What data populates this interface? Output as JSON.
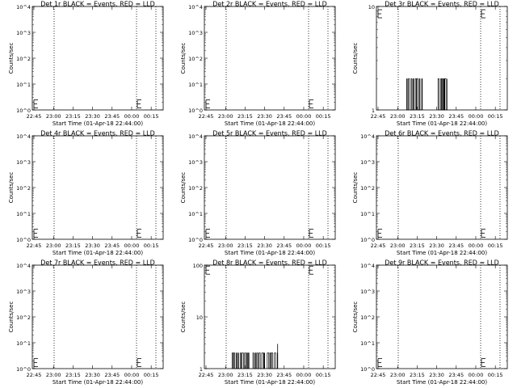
{
  "chart_data": [
    {
      "type": "line",
      "title": "Det 1r BLACK = Events, RED = LLD",
      "xlabel": "Start Time (01-Apr-18 22:44:00)",
      "ylabel": "Counts/sec",
      "yscale": "log",
      "ylim_exp": [
        0,
        4
      ],
      "ytick_labels": [
        "10^0",
        "10^1",
        "10^2",
        "10^3",
        "10^4"
      ],
      "xtick_labels": [
        "22:45",
        "23:00",
        "23:15",
        "23:30",
        "23:45",
        "00:00",
        "00:15"
      ],
      "x_range_minutes": [
        0,
        97
      ],
      "vlines_minutes": [
        16,
        91,
        126
      ],
      "e_markers": [
        {
          "x_min": 1,
          "y": 1.7
        },
        {
          "x_min": 122,
          "y": 1.7
        }
      ],
      "series": []
    },
    {
      "type": "line",
      "title": "Det 2r BLACK = Events, RED = LLD",
      "xlabel": "Start Time (01-Apr-18 22:44:00)",
      "ylabel": "Counts/sec",
      "yscale": "log",
      "ylim_exp": [
        0,
        4
      ],
      "ytick_labels": [
        "10^0",
        "10^1",
        "10^2",
        "10^3",
        "10^4"
      ],
      "xtick_labels": [
        "22:45",
        "23:00",
        "23:15",
        "23:30",
        "23:45",
        "00:00",
        "00:15"
      ],
      "x_range_minutes": [
        0,
        97
      ],
      "vlines_minutes": [
        16,
        91,
        126
      ],
      "e_markers": [
        {
          "x_min": 1,
          "y": 1.7
        },
        {
          "x_min": 122,
          "y": 1.7
        }
      ],
      "series": []
    },
    {
      "type": "line",
      "title": "Det 3r BLACK = Events, RED = LLD",
      "xlabel": "Start Time (01-Apr-18 22:44:00)",
      "ylabel": "Counts/sec",
      "yscale": "log",
      "ylim_exp": [
        0,
        1
      ],
      "ytick_labels": [
        "1",
        "10"
      ],
      "xtick_labels": [
        "22:45",
        "23:00",
        "23:15",
        "23:30",
        "23:45",
        "00:00",
        "00:15"
      ],
      "x_range_minutes": [
        0,
        97
      ],
      "vlines_minutes": [
        16,
        91,
        126
      ],
      "e_markers": [
        {
          "x_min": 1,
          "y": 8.5
        },
        {
          "x_min": 122,
          "y": 8.5
        }
      ],
      "series": [
        {
          "name": "Events",
          "segments": [
            [
              23,
              35
            ],
            [
              47,
              54
            ]
          ],
          "levels": [
            1,
            2
          ]
        }
      ]
    },
    {
      "type": "line",
      "title": "Det 4r BLACK = Events, RED = LLD",
      "xlabel": "Start Time (01-Apr-18 22:44:00)",
      "ylabel": "Counts/sec",
      "yscale": "log",
      "ylim_exp": [
        0,
        4
      ],
      "ytick_labels": [
        "10^0",
        "10^1",
        "10^2",
        "10^3",
        "10^4"
      ],
      "xtick_labels": [
        "22:45",
        "23:00",
        "23:15",
        "23:30",
        "23:45",
        "00:00",
        "00:15"
      ],
      "x_range_minutes": [
        0,
        97
      ],
      "vlines_minutes": [
        16,
        91,
        126
      ],
      "e_markers": [
        {
          "x_min": 1,
          "y": 1.7
        },
        {
          "x_min": 122,
          "y": 1.7
        }
      ],
      "series": []
    },
    {
      "type": "line",
      "title": "Det 5r BLACK = Events, RED = LLD",
      "xlabel": "Start Time (01-Apr-18 22:44:00)",
      "ylabel": "Counts/sec",
      "yscale": "log",
      "ylim_exp": [
        0,
        4
      ],
      "ytick_labels": [
        "10^0",
        "10^1",
        "10^2",
        "10^3",
        "10^4"
      ],
      "xtick_labels": [
        "22:45",
        "23:00",
        "23:15",
        "23:30",
        "23:45",
        "00:00",
        "00:15"
      ],
      "x_range_minutes": [
        0,
        97
      ],
      "vlines_minutes": [
        16,
        91,
        126
      ],
      "e_markers": [
        {
          "x_min": 1,
          "y": 1.7
        },
        {
          "x_min": 122,
          "y": 1.7
        }
      ],
      "series": []
    },
    {
      "type": "line",
      "title": "Det 6r BLACK = Events, RED = LLD",
      "xlabel": "Start Time (01-Apr-18 22:44:00)",
      "ylabel": "Counts/sec",
      "yscale": "log",
      "ylim_exp": [
        0,
        4
      ],
      "ytick_labels": [
        "10^0",
        "10^1",
        "10^2",
        "10^3",
        "10^4"
      ],
      "xtick_labels": [
        "22:45",
        "23:00",
        "23:15",
        "23:30",
        "23:45",
        "00:00",
        "00:15"
      ],
      "x_range_minutes": [
        0,
        97
      ],
      "vlines_minutes": [
        16,
        91,
        126
      ],
      "e_markers": [
        {
          "x_min": 1,
          "y": 1.7
        },
        {
          "x_min": 122,
          "y": 1.7
        }
      ],
      "series": []
    },
    {
      "type": "line",
      "title": "Det 7r BLACK = Events, RED = LLD",
      "xlabel": "Start Time (01-Apr-18 22:44:00)",
      "ylabel": "Counts/sec",
      "yscale": "log",
      "ylim_exp": [
        0,
        4
      ],
      "ytick_labels": [
        "10^0",
        "10^1",
        "10^2",
        "10^3",
        "10^4"
      ],
      "xtick_labels": [
        "22:45",
        "23:00",
        "23:15",
        "23:30",
        "23:45",
        "00:00",
        "00:15"
      ],
      "x_range_minutes": [
        0,
        97
      ],
      "vlines_minutes": [
        16,
        91,
        126
      ],
      "e_markers": [
        {
          "x_min": 1,
          "y": 1.7
        },
        {
          "x_min": 122,
          "y": 1.7
        }
      ],
      "series": []
    },
    {
      "type": "line",
      "title": "Det 8r BLACK = Events, RED = LLD",
      "xlabel": "Start Time (01-Apr-18 22:44:00)",
      "ylabel": "Counts/sec",
      "yscale": "log",
      "ylim_exp": [
        0,
        2
      ],
      "ytick_labels": [
        "1",
        "10",
        "100"
      ],
      "xtick_labels": [
        "22:45",
        "23:00",
        "23:15",
        "23:30",
        "23:45",
        "00:00",
        "00:15"
      ],
      "x_range_minutes": [
        0,
        97
      ],
      "vlines_minutes": [
        16,
        91,
        126
      ],
      "e_markers": [
        {
          "x_min": 1,
          "y": 80
        },
        {
          "x_min": 122,
          "y": 80
        }
      ],
      "series": [
        {
          "name": "Events",
          "segments": [
            [
              21,
              34
            ],
            [
              37,
              46
            ],
            [
              48,
              56
            ]
          ],
          "levels": [
            1,
            2
          ],
          "spike": {
            "x_min": 56,
            "y": 3
          }
        }
      ]
    },
    {
      "type": "line",
      "title": "Det 9r BLACK = Events, RED = LLD",
      "xlabel": "Start Time (01-Apr-18 22:44:00)",
      "ylabel": "Counts/sec",
      "yscale": "log",
      "ylim_exp": [
        0,
        4
      ],
      "ytick_labels": [
        "10^0",
        "10^1",
        "10^2",
        "10^3",
        "10^4"
      ],
      "xtick_labels": [
        "22:45",
        "23:00",
        "23:15",
        "23:30",
        "23:45",
        "00:00",
        "00:15"
      ],
      "x_range_minutes": [
        0,
        97
      ],
      "vlines_minutes": [
        16,
        91,
        126
      ],
      "e_markers": [
        {
          "x_min": 1,
          "y": 1.7
        },
        {
          "x_min": 122,
          "y": 1.7
        }
      ],
      "series": []
    }
  ]
}
